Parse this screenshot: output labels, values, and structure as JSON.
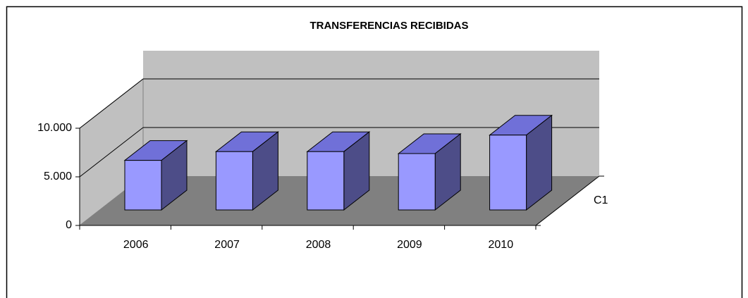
{
  "chart_data": {
    "type": "bar3d",
    "title": "TRANSFERENCIAS RECIBIDAS",
    "categories": [
      "2006",
      "2007",
      "2008",
      "2009",
      "2010"
    ],
    "series": [
      {
        "name": "C1",
        "color": "#9999ff",
        "values": [
          5100,
          6000,
          6000,
          5800,
          7700
        ]
      }
    ],
    "ylim": [
      0,
      10000
    ],
    "yticks": [
      {
        "value": 0,
        "label": "0"
      },
      {
        "value": 5000,
        "label": "5.000"
      },
      {
        "value": 10000,
        "label": "10.000"
      }
    ],
    "grid": true
  }
}
